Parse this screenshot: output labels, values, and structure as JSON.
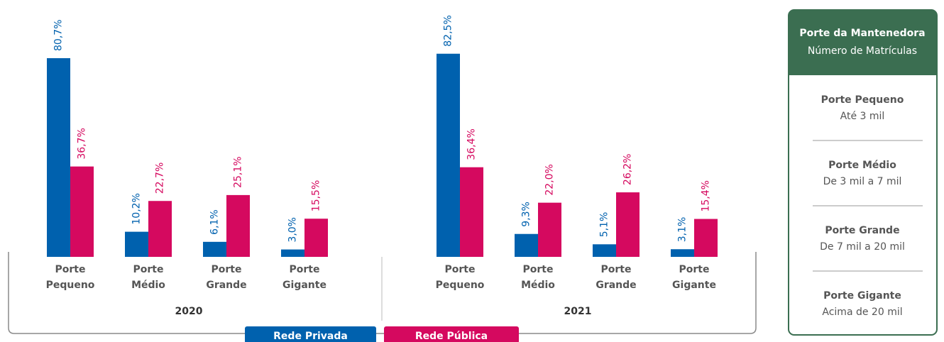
{
  "chart_data": {
    "type": "bar",
    "groups": [
      "2020",
      "2021"
    ],
    "categories": [
      "Porte Pequeno",
      "Porte Médio",
      "Porte Grande",
      "Porte Gigante",
      "Porte Pequeno",
      "Porte Médio",
      "Porte Grande",
      "Porte Gigante"
    ],
    "series": [
      {
        "name": "Rede Privada",
        "color": "#0061ae",
        "values": [
          80.7,
          10.2,
          6.1,
          3.0,
          82.5,
          9.3,
          5.1,
          3.1
        ],
        "value_labels": [
          "80,7%",
          "10,2%",
          "6,1%",
          "3,0%",
          "82,5%",
          "9,3%",
          "5,1%",
          "3,1%"
        ]
      },
      {
        "name": "Rede Pública",
        "color": "#d5095f",
        "values": [
          36.7,
          22.7,
          25.1,
          15.5,
          36.4,
          22.0,
          26.2,
          15.4
        ],
        "value_labels": [
          "36,7%",
          "22,7%",
          "25,1%",
          "15,5%",
          "36,4%",
          "22,0%",
          "26,2%",
          "15,4%"
        ]
      }
    ]
  },
  "legend_table": {
    "header": {
      "title": "Porte da Mantenedora",
      "subtitle": "Número de Matrículas"
    },
    "rows": [
      {
        "title": "Porte Pequeno",
        "subtitle": "Até 3 mil"
      },
      {
        "title": "Porte Médio",
        "subtitle": "De 3 mil a 7 mil"
      },
      {
        "title": "Porte Grande",
        "subtitle": "De 7 mil a 20 mil"
      },
      {
        "title": "Porte Gigante",
        "subtitle": "Acima de 20 mil"
      }
    ]
  }
}
